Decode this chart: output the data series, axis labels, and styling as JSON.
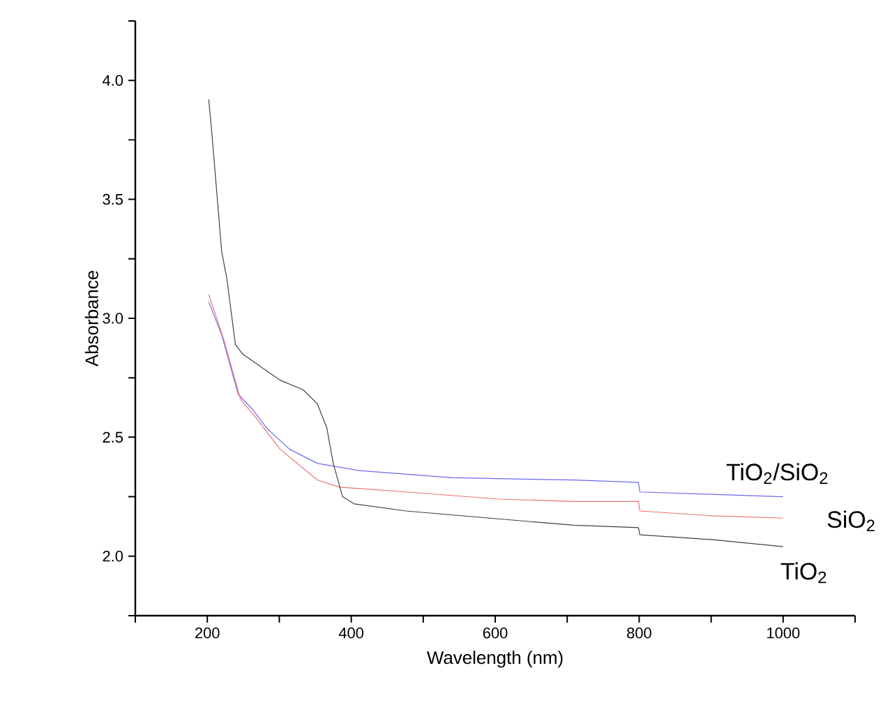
{
  "chart_data": {
    "type": "line",
    "xlabel": "Wavelength (nm)",
    "ylabel": "Absorbance",
    "xlim": [
      100,
      1100
    ],
    "xticks": [
      {
        "value": 100,
        "label": null
      },
      200,
      {
        "value": 300,
        "label": null
      },
      400,
      {
        "value": 500,
        "label": null
      },
      600,
      {
        "value": 700,
        "label": null
      },
      800,
      {
        "value": 900,
        "label": null
      },
      1000,
      {
        "value": 1100,
        "label": null
      }
    ],
    "ylim": [
      1.75,
      4.25
    ],
    "yticks": [
      {
        "value": 1.75,
        "label": null
      },
      {
        "value": 2.0,
        "label": "2.0"
      },
      {
        "value": 2.25,
        "label": null
      },
      {
        "value": 2.5,
        "label": "2.5"
      },
      {
        "value": 2.75,
        "label": null
      },
      {
        "value": 3.0,
        "label": "3.0"
      },
      {
        "value": 3.25,
        "label": null
      },
      {
        "value": 3.5,
        "label": "3.5"
      },
      {
        "value": 3.75,
        "label": null
      },
      {
        "value": 4.0,
        "label": "4.0"
      },
      {
        "value": 4.25,
        "label": null
      }
    ],
    "grid": false,
    "marker": "none",
    "line_style": "solid",
    "series": [
      {
        "name": "TiO$_{2}$/SiO$_{2}$",
        "color": "#6a6af0",
        "x": [
          202,
          220,
          243,
          262,
          282,
          314,
          353,
          411,
          540,
          709,
          799,
          801,
          900,
          1000
        ],
        "values": [
          3.07,
          2.93,
          2.68,
          2.62,
          2.54,
          2.45,
          2.39,
          2.36,
          2.33,
          2.32,
          2.31,
          2.27,
          2.26,
          2.25
        ]
      },
      {
        "name": "SiO$_{2}$",
        "color": "#f07070",
        "x": [
          202,
          223,
          246,
          268,
          301,
          353,
          384,
          476,
          605,
          709,
          799,
          801,
          900,
          1000
        ],
        "values": [
          3.1,
          2.91,
          2.66,
          2.58,
          2.45,
          2.32,
          2.29,
          2.27,
          2.24,
          2.23,
          2.23,
          2.19,
          2.17,
          2.16
        ]
      },
      {
        "name": "TiO$_{2}$",
        "color": "#404040",
        "x": [
          202,
          206,
          220,
          227,
          239,
          249,
          282,
          301,
          333,
          353,
          366,
          375,
          388,
          404,
          476,
          592,
          709,
          799,
          801,
          900,
          1000
        ],
        "values": [
          3.92,
          3.79,
          3.28,
          3.17,
          2.89,
          2.85,
          2.78,
          2.74,
          2.7,
          2.64,
          2.54,
          2.39,
          2.25,
          2.22,
          2.19,
          2.16,
          2.13,
          2.12,
          2.09,
          2.07,
          2.04
        ]
      }
    ]
  }
}
